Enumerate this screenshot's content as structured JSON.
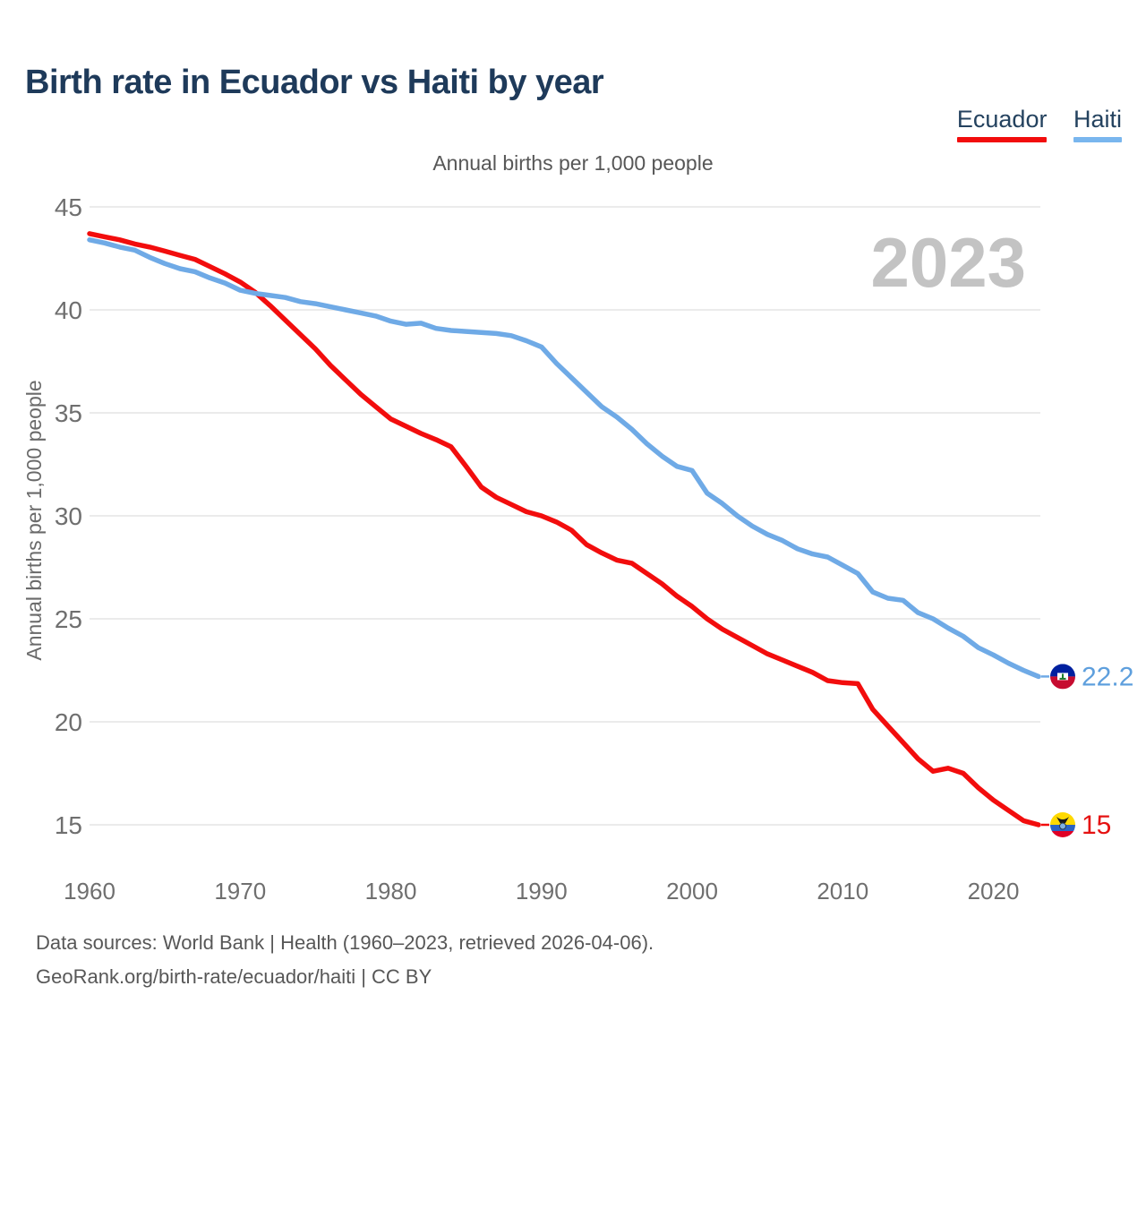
{
  "header": {
    "title": "Birth rate in Ecuador vs Haiti by year"
  },
  "legend": {
    "items": [
      {
        "label": "Ecuador",
        "color": "#f20d0d"
      },
      {
        "label": "Haiti",
        "color": "#79b6ee"
      }
    ]
  },
  "chart_data": {
    "type": "line",
    "subtitle": "Annual births per 1,000 people",
    "ylabel": "Annual births per 1,000 people",
    "watermark": "2023",
    "grid": true,
    "legend_position": "top-right",
    "ylim": [
      15,
      45
    ],
    "y_ticks": [
      45,
      40,
      35,
      30,
      25,
      20,
      15
    ],
    "x_ticks": [
      1960,
      1970,
      1980,
      1990,
      2000,
      2010,
      2020
    ],
    "x": [
      1960,
      1961,
      1962,
      1963,
      1964,
      1965,
      1966,
      1967,
      1968,
      1969,
      1970,
      1971,
      1972,
      1973,
      1974,
      1975,
      1976,
      1977,
      1978,
      1979,
      1980,
      1981,
      1982,
      1983,
      1984,
      1985,
      1986,
      1987,
      1988,
      1989,
      1990,
      1991,
      1992,
      1993,
      1994,
      1995,
      1996,
      1997,
      1998,
      1999,
      2000,
      2001,
      2002,
      2003,
      2004,
      2005,
      2006,
      2007,
      2008,
      2009,
      2010,
      2011,
      2012,
      2013,
      2014,
      2015,
      2016,
      2017,
      2018,
      2019,
      2020,
      2021,
      2022,
      2023
    ],
    "series": [
      {
        "name": "Ecuador",
        "color": "#f20d0d",
        "label_color": "#e51212",
        "flag": "ecuador",
        "end_label": "15",
        "values": [
          43.7,
          43.55,
          43.4,
          43.2,
          43.05,
          42.85,
          42.65,
          42.45,
          42.1,
          41.75,
          41.35,
          40.85,
          40.2,
          39.5,
          38.8,
          38.1,
          37.3,
          36.6,
          35.9,
          35.3,
          34.7,
          34.35,
          34.0,
          33.7,
          33.35,
          32.4,
          31.4,
          30.9,
          30.55,
          30.2,
          30.0,
          29.7,
          29.3,
          28.6,
          28.2,
          27.85,
          27.7,
          27.2,
          26.7,
          26.1,
          25.6,
          25.0,
          24.5,
          24.1,
          23.7,
          23.3,
          23.0,
          22.7,
          22.4,
          22.0,
          21.9,
          21.85,
          20.6,
          19.8,
          19.0,
          18.2,
          17.6,
          17.75,
          17.5,
          16.8,
          16.2,
          15.7,
          15.2,
          15.0
        ]
      },
      {
        "name": "Haiti",
        "color": "#6faae6",
        "label_color": "#5e9fdd",
        "flag": "haiti",
        "end_label": "22.2",
        "values": [
          43.4,
          43.25,
          43.05,
          42.9,
          42.55,
          42.25,
          42.0,
          41.85,
          41.55,
          41.3,
          40.95,
          40.8,
          40.7,
          40.6,
          40.4,
          40.3,
          40.15,
          40.0,
          39.85,
          39.7,
          39.45,
          39.3,
          39.35,
          39.1,
          39.0,
          38.95,
          38.9,
          38.85,
          38.75,
          38.5,
          38.2,
          37.4,
          36.7,
          36.0,
          35.3,
          34.8,
          34.2,
          33.5,
          32.9,
          32.4,
          32.2,
          31.1,
          30.6,
          30.0,
          29.5,
          29.1,
          28.8,
          28.4,
          28.15,
          28.0,
          27.6,
          27.2,
          26.3,
          26.0,
          25.9,
          25.3,
          25.0,
          24.55,
          24.15,
          23.6,
          23.25,
          22.85,
          22.5,
          22.2
        ]
      }
    ]
  },
  "footer": {
    "line1": "Data sources: World Bank | Health (1960–2023, retrieved 2026-04-06).",
    "line2": "GeoRank.org/birth-rate/ecuador/haiti | CC BY"
  }
}
